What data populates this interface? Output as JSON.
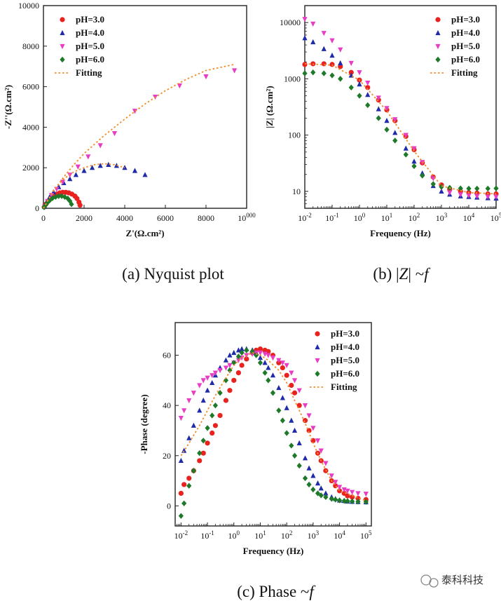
{
  "colors": {
    "pH3": "#e8231f",
    "pH4": "#1f2ba8",
    "pH5": "#e83cc4",
    "pH6": "#1e7a28",
    "fitting": "#f28c2a"
  },
  "captions": {
    "a_prefix": "(a) Nyquist plot",
    "b_prefix": "(b) |",
    "b_italic": "Z",
    "b_mid": "| ~",
    "b_italic2": "f",
    "c_prefix": "(c) Phase ~",
    "c_italic": "f"
  },
  "watermark": {
    "text": "泰科科技"
  },
  "chart_data": [
    {
      "id": "nyquist",
      "type": "scatter",
      "title": "",
      "xlabel": "Z'(Ω.cm²)",
      "ylabel": "-Z''(Ω.cm²)",
      "xlim": [
        0,
        10000
      ],
      "ylim": [
        0,
        10000
      ],
      "xticks": [
        0,
        2000,
        4000,
        6000,
        8000,
        10000
      ],
      "yticks": [
        0,
        2000,
        4000,
        6000,
        8000,
        10000
      ],
      "legend_position": "top-left",
      "series": [
        {
          "name": "pH=3.0",
          "marker": "circle",
          "color": "#e8231f",
          "x": [
            40,
            120,
            220,
            350,
            500,
            650,
            800,
            950,
            1100,
            1250,
            1400,
            1550,
            1650,
            1750,
            1800
          ],
          "y": [
            60,
            200,
            350,
            500,
            620,
            700,
            760,
            790,
            790,
            760,
            700,
            600,
            480,
            300,
            150
          ]
        },
        {
          "name": "pH=4.0",
          "marker": "triangle-up",
          "color": "#1f2ba8",
          "x": [
            50,
            150,
            300,
            500,
            750,
            1000,
            1300,
            1600,
            2000,
            2400,
            2800,
            3200,
            3600,
            4000,
            4500,
            5000
          ],
          "y": [
            80,
            300,
            550,
            800,
            1050,
            1250,
            1450,
            1650,
            1850,
            2000,
            2100,
            2150,
            2100,
            2000,
            1850,
            1650
          ]
        },
        {
          "name": "pH=5.0",
          "marker": "triangle-down",
          "color": "#e83cc4",
          "x": [
            60,
            200,
            400,
            650,
            950,
            1300,
            1700,
            2200,
            2800,
            3500,
            4500,
            5500,
            6700,
            8000,
            9400
          ],
          "y": [
            100,
            350,
            650,
            950,
            1300,
            1650,
            2050,
            2550,
            3100,
            3700,
            4800,
            5500,
            6050,
            6500,
            6800
          ]
        },
        {
          "name": "pH=6.0",
          "marker": "diamond",
          "color": "#1e7a28",
          "x": [
            30,
            100,
            200,
            320,
            450,
            600,
            750,
            900,
            1050,
            1200,
            1300,
            1380
          ],
          "y": [
            50,
            150,
            280,
            400,
            500,
            560,
            600,
            600,
            560,
            480,
            360,
            200
          ]
        },
        {
          "name": "Fitting",
          "line": "dotted",
          "color": "#f28c2a",
          "x": [
            0,
            500,
            1000,
            1500,
            2000,
            3000,
            4000,
            5000,
            6000,
            7000,
            8000,
            9400
          ],
          "y": [
            0,
            850,
            1550,
            2150,
            2700,
            3600,
            4400,
            5150,
            5800,
            6350,
            6800,
            7100
          ]
        },
        {
          "name": "",
          "line": "dotted",
          "color": "#f28c2a",
          "x": [
            0,
            500,
            1000,
            1500,
            2000,
            2500,
            3000,
            3500,
            4000
          ],
          "y": [
            0,
            900,
            1450,
            1800,
            2000,
            2150,
            2200,
            2150,
            2000
          ]
        }
      ]
    },
    {
      "id": "bode_mod",
      "type": "scatter",
      "title": "",
      "xlabel": "Frequency (Hz)",
      "ylabel": "|Z| (Ω.cm²)",
      "xscale": "log",
      "yscale": "log",
      "xlim": [
        0.01,
        100000
      ],
      "ylim": [
        5,
        20000
      ],
      "xticks": [
        0.01,
        0.1,
        1,
        10,
        100,
        1000,
        10000,
        100000
      ],
      "xtick_labels": [
        "10-2",
        "10-1",
        "100",
        "101",
        "102",
        "103",
        "104",
        "105"
      ],
      "yticks": [
        10,
        100,
        1000,
        10000
      ],
      "ytick_labels": [
        "10",
        "100",
        "1000",
        "10000"
      ],
      "legend_position": "top-right",
      "series": [
        {
          "name": "pH=3.0",
          "marker": "circle",
          "color": "#e8231f",
          "x": [
            0.01,
            0.02,
            0.05,
            0.1,
            0.2,
            0.5,
            1,
            2,
            5,
            10,
            20,
            50,
            100,
            200,
            500,
            1000,
            2000,
            5000,
            10000,
            20000,
            50000,
            100000
          ],
          "y": [
            1800,
            1850,
            1850,
            1800,
            1650,
            1300,
            950,
            700,
            420,
            280,
            180,
            95,
            55,
            32,
            18,
            13,
            11,
            10,
            9.5,
            9.3,
            9,
            9
          ]
        },
        {
          "name": "pH=4.0",
          "marker": "triangle-up",
          "color": "#1f2ba8",
          "x": [
            0.01,
            0.02,
            0.05,
            0.1,
            0.2,
            0.5,
            1,
            2,
            5,
            10,
            20,
            50,
            100,
            200,
            500,
            1000,
            2000,
            5000,
            10000,
            20000,
            50000,
            100000
          ],
          "y": [
            5300,
            4500,
            3400,
            2600,
            1900,
            1150,
            800,
            520,
            290,
            180,
            110,
            58,
            34,
            21,
            12.5,
            10,
            8.8,
            8.2,
            8,
            7.8,
            7.6,
            7.5
          ]
        },
        {
          "name": "pH=5.0",
          "marker": "triangle-down",
          "color": "#e83cc4",
          "x": [
            0.01,
            0.02,
            0.05,
            0.1,
            0.2,
            0.5,
            1,
            2,
            5,
            10,
            20,
            50,
            100,
            200,
            500,
            1000,
            2000,
            5000,
            10000,
            20000,
            50000,
            100000
          ],
          "y": [
            11500,
            9500,
            6500,
            4800,
            3300,
            1900,
            1300,
            850,
            460,
            300,
            190,
            100,
            58,
            33,
            17,
            11.5,
            9.5,
            8.8,
            8.4,
            8.2,
            8,
            8
          ]
        },
        {
          "name": "pH=6.0",
          "marker": "diamond",
          "color": "#1e7a28",
          "x": [
            0.01,
            0.02,
            0.05,
            0.1,
            0.2,
            0.5,
            1,
            2,
            5,
            10,
            20,
            50,
            100,
            200,
            500,
            1000,
            2000,
            5000,
            10000,
            20000,
            50000,
            100000
          ],
          "y": [
            1250,
            1300,
            1250,
            1150,
            1000,
            700,
            500,
            340,
            200,
            125,
            80,
            45,
            28,
            19,
            13.5,
            12,
            11.6,
            11.3,
            11.2,
            11.2,
            11.2,
            11.3
          ]
        },
        {
          "name": "Fitting",
          "line": "dotted",
          "color": "#f28c2a",
          "x": [
            0.01,
            0.1,
            1,
            10,
            100,
            1000,
            10000,
            100000
          ],
          "y": [
            1850,
            1750,
            950,
            270,
            52,
            12.5,
            9.5,
            9
          ]
        }
      ]
    },
    {
      "id": "bode_phase",
      "type": "scatter",
      "title": "",
      "xlabel": "Frequency (Hz)",
      "ylabel": "-Phase (degree)",
      "xscale": "log",
      "xlim": [
        0.006,
        160000
      ],
      "ylim": [
        -8,
        73
      ],
      "xticks": [
        0.01,
        0.1,
        1,
        10,
        100,
        1000,
        10000,
        100000
      ],
      "xtick_labels": [
        "10-2",
        "10-1",
        "100",
        "101",
        "102",
        "103",
        "104",
        "105"
      ],
      "yticks": [
        0,
        20,
        40,
        60
      ],
      "legend_position": "top-right",
      "series": [
        {
          "name": "pH=3.0",
          "marker": "circle",
          "color": "#e8231f",
          "x": [
            0.01,
            0.013,
            0.02,
            0.03,
            0.05,
            0.07,
            0.1,
            0.15,
            0.2,
            0.3,
            0.5,
            0.7,
            1,
            1.5,
            2,
            3,
            5,
            7,
            10,
            15,
            20,
            30,
            50,
            70,
            100,
            150,
            200,
            300,
            500,
            700,
            1000,
            1500,
            2000,
            3000,
            5000,
            7000,
            10000,
            15000,
            20000,
            30000,
            50000,
            100000
          ],
          "y": [
            5,
            8.5,
            11,
            14,
            18,
            21,
            25,
            29,
            32,
            36,
            42,
            46,
            50,
            53,
            56,
            58.5,
            61,
            62,
            62.5,
            62,
            61.5,
            60,
            57,
            55,
            52,
            48,
            45,
            40,
            34,
            30,
            26,
            21,
            18,
            14,
            10,
            8,
            6,
            5,
            4,
            3.5,
            3,
            2.5
          ]
        },
        {
          "name": "pH=4.0",
          "marker": "triangle-up",
          "color": "#1f2ba8",
          "x": [
            0.01,
            0.013,
            0.02,
            0.03,
            0.05,
            0.07,
            0.1,
            0.15,
            0.2,
            0.3,
            0.5,
            0.7,
            1,
            1.5,
            2,
            3,
            5,
            7,
            10,
            15,
            20,
            30,
            50,
            70,
            100,
            150,
            200,
            300,
            500,
            700,
            1000,
            1500,
            2000,
            3000,
            5000,
            7000,
            10000,
            15000,
            20000,
            30000,
            50000,
            100000
          ],
          "y": [
            18,
            22,
            27,
            32,
            38,
            42,
            46,
            49,
            52,
            55,
            58,
            60,
            61,
            62,
            62.5,
            62.5,
            62,
            61,
            59,
            57,
            55,
            52,
            47,
            43,
            39,
            34,
            30,
            25,
            19,
            15,
            12,
            9,
            7,
            5,
            3.5,
            2.8,
            2.2,
            2,
            1.8,
            1.7,
            1.6,
            1.5
          ]
        },
        {
          "name": "pH=5.0",
          "marker": "triangle-down",
          "color": "#e83cc4",
          "x": [
            0.01,
            0.013,
            0.02,
            0.03,
            0.05,
            0.07,
            0.1,
            0.15,
            0.2,
            0.3,
            0.5,
            0.7,
            1,
            1.5,
            2,
            3,
            5,
            7,
            10,
            15,
            20,
            30,
            50,
            70,
            100,
            150,
            200,
            300,
            500,
            700,
            1000,
            1500,
            2000,
            3000,
            5000,
            7000,
            10000,
            15000,
            20000,
            30000,
            50000,
            100000
          ],
          "y": [
            35,
            38,
            42,
            45,
            48,
            50,
            51,
            52,
            53,
            54,
            55,
            56,
            57,
            58,
            59,
            60,
            60.5,
            61,
            61,
            60.5,
            60,
            59,
            58,
            57,
            56,
            53,
            50,
            46,
            40,
            36,
            31,
            26,
            22,
            17,
            12,
            9.5,
            7.5,
            6.5,
            6,
            5.5,
            5,
            4.8
          ]
        },
        {
          "name": "pH=6.0",
          "marker": "diamond",
          "color": "#1e7a28",
          "x": [
            0.01,
            0.013,
            0.02,
            0.03,
            0.05,
            0.07,
            0.1,
            0.15,
            0.2,
            0.3,
            0.5,
            0.7,
            1,
            1.5,
            2,
            3,
            5,
            7,
            10,
            15,
            20,
            30,
            50,
            70,
            100,
            150,
            200,
            300,
            500,
            700,
            1000,
            1500,
            2000,
            3000,
            5000,
            7000,
            10000,
            15000,
            20000,
            30000,
            50000,
            100000
          ],
          "y": [
            -4,
            1,
            8,
            14,
            21,
            26,
            31,
            36,
            40,
            45,
            50,
            54,
            57,
            59.5,
            61,
            62,
            61.5,
            60,
            57,
            53,
            50,
            45,
            38,
            34,
            29,
            24,
            20,
            16,
            11,
            8.5,
            6.5,
            5,
            4.2,
            3.5,
            2.8,
            2.5,
            2.2,
            2,
            1.9,
            1.8,
            1.7,
            1.6
          ]
        },
        {
          "name": "Fitting",
          "line": "dotted",
          "color": "#f28c2a",
          "x": [
            0.01,
            0.02,
            0.05,
            0.1,
            0.2,
            0.5,
            1,
            2,
            5,
            10,
            20,
            50,
            100,
            200,
            500,
            1000,
            2000,
            5000,
            10000,
            100000
          ],
          "y": [
            20,
            25,
            32,
            38,
            44,
            51,
            56,
            59,
            61,
            60,
            58,
            54,
            49,
            42,
            33,
            25,
            18,
            10,
            6,
            2
          ]
        }
      ]
    }
  ]
}
